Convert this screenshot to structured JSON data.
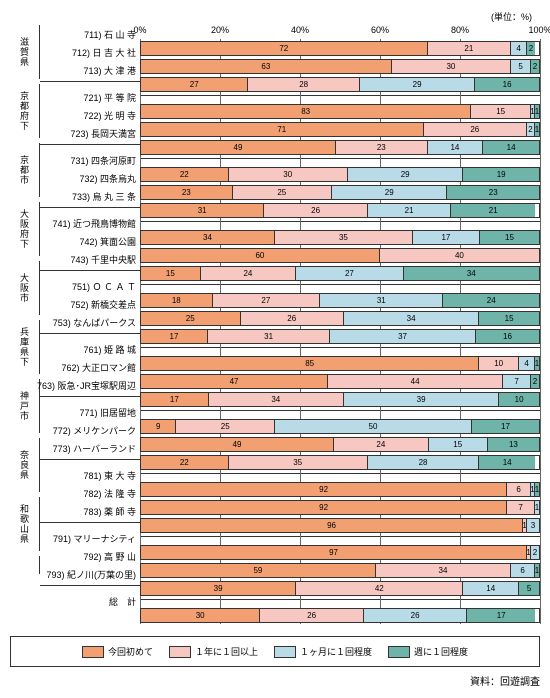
{
  "unit_label": "(単位：%)",
  "xticks": [
    0,
    20,
    40,
    60,
    80,
    100
  ],
  "colors": [
    "#f2a072",
    "#f7c7c2",
    "#b9dbe8",
    "#6fb4a8"
  ],
  "legend": [
    "今回初めて",
    "１年に１回以上",
    "１ヶ月に１回程度",
    "週に１回程度"
  ],
  "source": "資料：回遊調査",
  "groups": [
    {
      "name": "滋賀県",
      "rows": [
        {
          "label": "711) 石 山 寺",
          "v": [
            72,
            21,
            4,
            2
          ]
        },
        {
          "label": "712) 日 吉 大 社",
          "v": [
            63,
            30,
            5,
            2
          ]
        },
        {
          "label": "713) 大 津 港",
          "v": [
            27,
            28,
            29,
            16
          ]
        }
      ]
    },
    {
      "name": "京都府下",
      "rows": [
        {
          "label": "721) 平 等 院",
          "v": [
            83,
            15,
            1,
            1
          ]
        },
        {
          "label": "722) 光 明 寺",
          "v": [
            71,
            26,
            2,
            1
          ]
        },
        {
          "label": "723) 長岡天満宮",
          "v": [
            49,
            23,
            14,
            14
          ]
        }
      ]
    },
    {
      "name": "京都市",
      "rows": [
        {
          "label": "731) 四条河原町",
          "v": [
            22,
            30,
            29,
            19
          ]
        },
        {
          "label": "732) 四条烏丸",
          "v": [
            23,
            25,
            29,
            23
          ]
        },
        {
          "label": "733) 烏 丸 三 条",
          "v": [
            31,
            26,
            21,
            21
          ]
        }
      ]
    },
    {
      "name": "大阪府下",
      "rows": [
        {
          "label": "741) 近つ飛鳥博物館",
          "v": [
            34,
            35,
            17,
            15
          ]
        },
        {
          "label": "742) 箕面公園",
          "v": [
            60,
            40,
            0,
            0
          ]
        },
        {
          "label": "743) 千里中央駅",
          "v": [
            15,
            24,
            27,
            34
          ]
        }
      ]
    },
    {
      "name": "大阪市",
      "rows": [
        {
          "label": "751) Ｏ Ｃ Ａ Ｔ",
          "v": [
            18,
            27,
            31,
            24
          ]
        },
        {
          "label": "752) 新橋交差点",
          "v": [
            25,
            26,
            34,
            15
          ]
        },
        {
          "label": "753) なんばパークス",
          "v": [
            17,
            31,
            37,
            16
          ]
        }
      ]
    },
    {
      "name": "兵庫県下",
      "rows": [
        {
          "label": "761) 姫 路 城",
          "v": [
            85,
            10,
            4,
            1
          ]
        },
        {
          "label": "762) 大正ロマン館",
          "v": [
            47,
            44,
            7,
            2
          ]
        },
        {
          "label": "763) 阪急･JR宝塚駅周辺",
          "v": [
            17,
            34,
            39,
            10
          ]
        }
      ]
    },
    {
      "name": "神戸市",
      "rows": [
        {
          "label": "771) 旧居留地",
          "v": [
            9,
            25,
            50,
            17
          ]
        },
        {
          "label": "772) メリケンパーク",
          "v": [
            49,
            24,
            15,
            13
          ]
        },
        {
          "label": "773) ハーバーランド",
          "v": [
            22,
            35,
            28,
            14
          ]
        }
      ]
    },
    {
      "name": "奈良県",
      "rows": [
        {
          "label": "781) 東 大 寺",
          "v": [
            92,
            6,
            1,
            1
          ]
        },
        {
          "label": "782) 法 隆 寺",
          "v": [
            92,
            7,
            1,
            0
          ]
        },
        {
          "label": "783) 薬 師 寺",
          "v": [
            96,
            1,
            3,
            0
          ]
        }
      ]
    },
    {
      "name": "和歌山県",
      "rows": [
        {
          "label": "791) マリーナシティ",
          "v": [
            97,
            1,
            2,
            0
          ]
        },
        {
          "label": "792) 高 野 山",
          "v": [
            59,
            34,
            6,
            1
          ]
        },
        {
          "label": "793) 紀ノ川(万葉の里)",
          "v": [
            39,
            42,
            14,
            5
          ]
        }
      ]
    },
    {
      "name": "",
      "rows": [
        {
          "label": "総　計",
          "v": [
            30,
            26,
            26,
            17
          ]
        }
      ]
    }
  ]
}
